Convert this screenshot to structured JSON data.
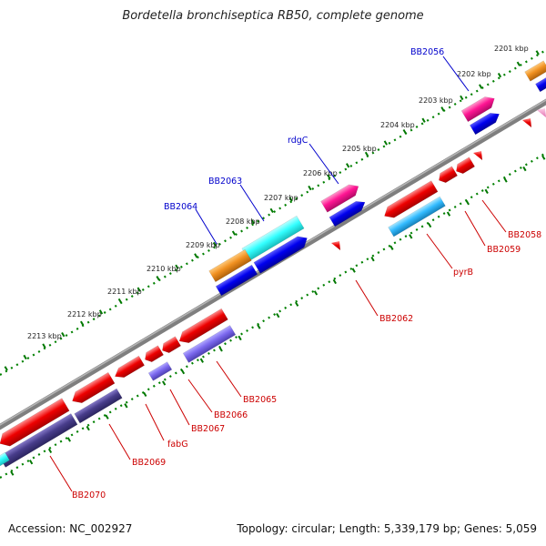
{
  "title": "Bordetella bronchiseptica RB50, complete genome",
  "footer": {
    "accession": "Accession: NC_002927",
    "topology": "Topology: circular; Length: 5,339,179 bp; Genes: 5,059"
  },
  "scale_ticks": [
    "2201 kbp",
    "2202 kbp",
    "2203 kbp",
    "2204 kbp",
    "2205 kbp",
    "2206 kbp",
    "2207 kbp",
    "2208 kbp",
    "2209 kbp",
    "2210 kbp",
    "2211 kbp",
    "2212 kbp",
    "2213 kbp"
  ],
  "gene_labels": [
    "BB2056",
    "rdgC",
    "BB2063",
    "BB2064",
    "BB2058",
    "BB2059",
    "pyrB",
    "BB2062",
    "BB2065",
    "BB2066",
    "BB2067",
    "fabG",
    "BB2069",
    "BB2070"
  ],
  "colors": {
    "forward_label": "#0000cc",
    "reverse_label": "#cc0000",
    "red_gene": "#e8000b",
    "blue_gene": "#0000ee",
    "cyan_gene": "#33ffff",
    "magenta_gene": "#ff1493",
    "orange_gene": "#f09020",
    "purple_gene": "#7b68ee",
    "navy_gene": "#483d8b",
    "sky_gene": "#33bbff",
    "backbone": "#8a8a8a",
    "tick_green": "#008000"
  }
}
